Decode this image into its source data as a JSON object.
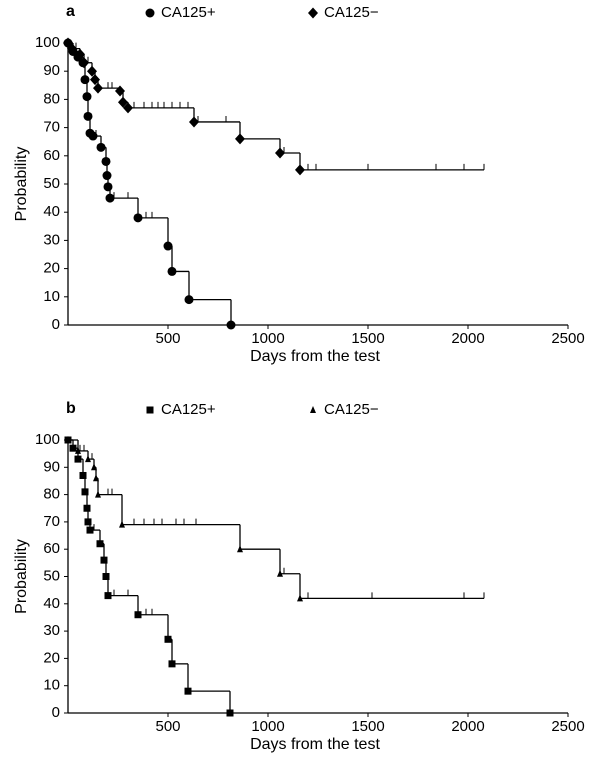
{
  "charts": [
    {
      "chart_data": {
        "type": "line",
        "title": "a",
        "x_label": "Days from the test",
        "y_label": "Probability",
        "xlim": [
          0,
          2500
        ],
        "ylim": [
          0,
          100
        ],
        "xticks": [
          500,
          1000,
          1500,
          2000,
          2500
        ],
        "yticks": [
          0,
          10,
          20,
          30,
          40,
          50,
          60,
          70,
          80,
          90,
          100
        ],
        "series": [
          {
            "name": "CA125+",
            "color": "#000000",
            "marker": "circle",
            "x": [
              0,
              25,
              50,
              75,
              85,
              95,
              100,
              110,
              125,
              165,
              190,
              195,
              200,
              210,
              350,
              500,
              520,
              605,
              815
            ],
            "values": [
              100,
              97,
              95,
              93,
              87,
              81,
              74,
              68,
              67,
              63,
              58,
              53,
              49,
              45,
              38,
              28,
              19,
              9,
              0
            ],
            "censored_x": [
              140,
              230,
              300,
              390,
              420
            ],
            "censored_values": [
              67,
              45,
              45,
              38,
              38
            ]
          },
          {
            "name": "CA125−",
            "color": "#000000",
            "marker": "diamond",
            "x": [
              0,
              20,
              60,
              80,
              120,
              135,
              150,
              260,
              275,
              300,
              630,
              860,
              1060,
              1160
            ],
            "values": [
              100,
              98,
              96,
              93,
              90,
              87,
              84,
              83,
              79,
              77,
              72,
              66,
              61,
              55
            ],
            "censored_x": [
              40,
              100,
              200,
              220,
              330,
              380,
              420,
              450,
              480,
              520,
              560,
              600,
              650,
              790,
              1080,
              1200,
              1240,
              1500,
              1840,
              1980,
              2080
            ],
            "censored_values": [
              98,
              93,
              84,
              84,
              77,
              77,
              77,
              77,
              77,
              77,
              77,
              77,
              72,
              72,
              61,
              55,
              55,
              55,
              55,
              55,
              55
            ]
          }
        ]
      }
    },
    {
      "chart_data": {
        "type": "line",
        "title": "b",
        "x_label": "Days from the test",
        "y_label": "Probability",
        "xlim": [
          0,
          2500
        ],
        "ylim": [
          0,
          100
        ],
        "xticks": [
          500,
          1000,
          1500,
          2000,
          2500
        ],
        "yticks": [
          0,
          10,
          20,
          30,
          40,
          50,
          60,
          70,
          80,
          90,
          100
        ],
        "series": [
          {
            "name": "CA125+",
            "color": "#000000",
            "marker": "square",
            "x": [
              0,
              25,
              50,
              75,
              85,
              95,
              100,
              110,
              160,
              180,
              190,
              200,
              350,
              500,
              520,
              600,
              810
            ],
            "values": [
              100,
              97,
              93,
              87,
              81,
              75,
              70,
              67,
              62,
              56,
              50,
              43,
              36,
              27,
              18,
              8,
              0
            ],
            "censored_x": [
              130,
              230,
              300,
              390,
              420
            ],
            "censored_values": [
              67,
              43,
              43,
              36,
              36
            ]
          },
          {
            "name": "CA125−",
            "color": "#000000",
            "marker": "triangle",
            "x": [
              0,
              50,
              100,
              130,
              140,
              150,
              270,
              860,
              1060,
              1160
            ],
            "values": [
              100,
              96,
              93,
              90,
              86,
              80,
              69,
              60,
              51,
              42
            ],
            "censored_x": [
              60,
              80,
              120,
              200,
              220,
              330,
              380,
              430,
              470,
              540,
              580,
              640,
              1080,
              1200,
              1520,
              1980,
              2080
            ],
            "censored_values": [
              96,
              96,
              93,
              80,
              80,
              69,
              69,
              69,
              69,
              69,
              69,
              69,
              51,
              42,
              42,
              42,
              42
            ]
          }
        ]
      }
    }
  ]
}
